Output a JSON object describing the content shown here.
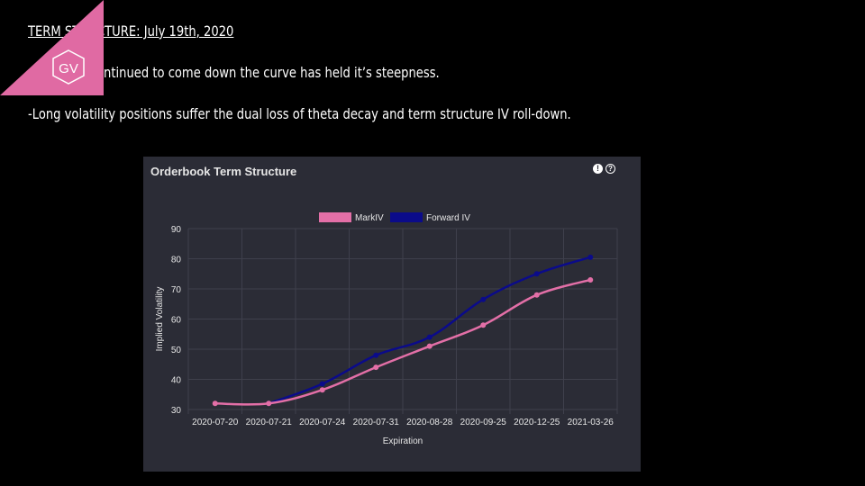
{
  "slide": {
    "title": "TERM STRUCTURE: July 19th, 2020",
    "bullets": [
      "-As IV has continued to come down the curve has held it’s steepness.",
      "-Long volatility positions suffer the dual loss of theta decay and term structure IV roll-down."
    ],
    "logo_text": "GV",
    "logo_color": "#e06aa3"
  },
  "panel": {
    "title": "Orderbook Term Structure",
    "icons": [
      "info-icon",
      "help-icon"
    ]
  },
  "chart_data": {
    "type": "line",
    "categories": [
      "2020-07-20",
      "2020-07-21",
      "2020-07-24",
      "2020-07-31",
      "2020-08-28",
      "2020-09-25",
      "2020-12-25",
      "2021-03-26"
    ],
    "series": [
      {
        "name": "MarkIV",
        "color": "#e36fa7",
        "values": [
          32,
          32,
          36.5,
          44,
          51,
          58,
          68,
          73
        ]
      },
      {
        "name": "Forward IV",
        "color": "#0b0b8a",
        "values": [
          null,
          32,
          38.5,
          48,
          54,
          66.5,
          75,
          80.5
        ]
      }
    ],
    "title": "Orderbook Term Structure",
    "xlabel": "Expiration",
    "ylabel": "Implied Volatility",
    "ylim": [
      30,
      90
    ],
    "yticks": [
      30,
      40,
      50,
      60,
      70,
      80,
      90
    ],
    "grid": true,
    "legend": "top-center"
  }
}
